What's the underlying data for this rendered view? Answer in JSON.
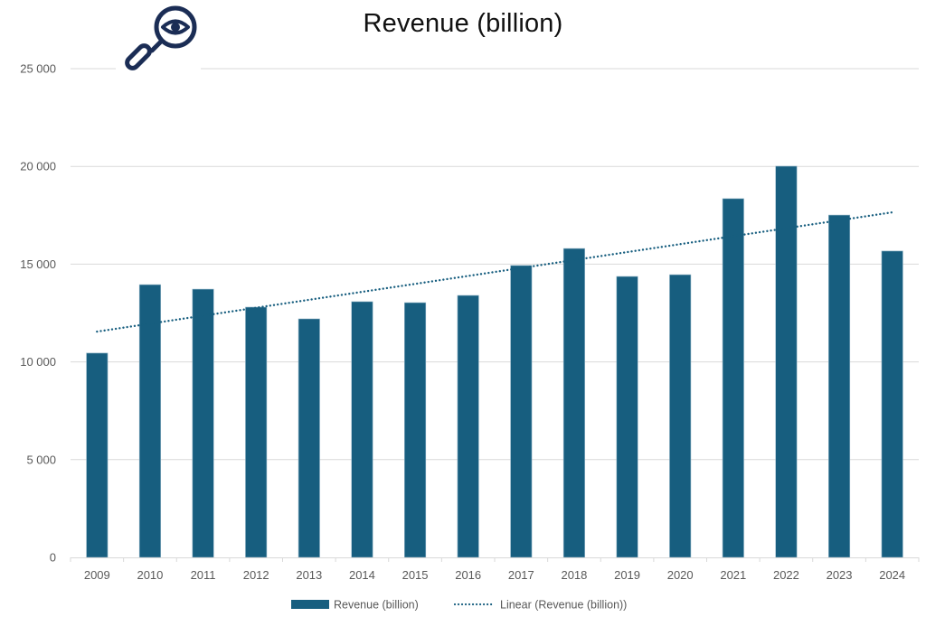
{
  "chart_data": {
    "type": "bar",
    "title": "Revenue (billion)",
    "xlabel": "",
    "ylabel": "",
    "categories": [
      "2009",
      "2010",
      "2011",
      "2012",
      "2013",
      "2014",
      "2015",
      "2016",
      "2017",
      "2018",
      "2019",
      "2020",
      "2021",
      "2022",
      "2023",
      "2024"
    ],
    "series": [
      {
        "name": "Revenue (billion)",
        "type": "bar",
        "color": "#175E7F",
        "values": [
          10450,
          13950,
          13720,
          12800,
          12200,
          13080,
          13030,
          13400,
          14930,
          15800,
          14370,
          14460,
          18350,
          20010,
          17510,
          15670
        ]
      },
      {
        "name": "Linear (Revenue (billion))",
        "type": "trendline-linear",
        "style": "dotted",
        "color": "#175E7F",
        "start_value": 11550,
        "end_value": 17650
      }
    ],
    "ylim": [
      0,
      25000
    ],
    "yticks": [
      0,
      5000,
      10000,
      15000,
      20000,
      25000
    ],
    "ytick_labels": [
      "0",
      "5 000",
      "10 000",
      "15 000",
      "20 000",
      "25 000"
    ],
    "grid": true,
    "legend": {
      "placement": "bottom",
      "entries": [
        "Revenue (billion)",
        "Linear (Revenue (billion))"
      ]
    }
  },
  "decorations": {
    "logo_icon": "magnifying-glass-eye-icon",
    "logo_color": "#1B2D55"
  }
}
